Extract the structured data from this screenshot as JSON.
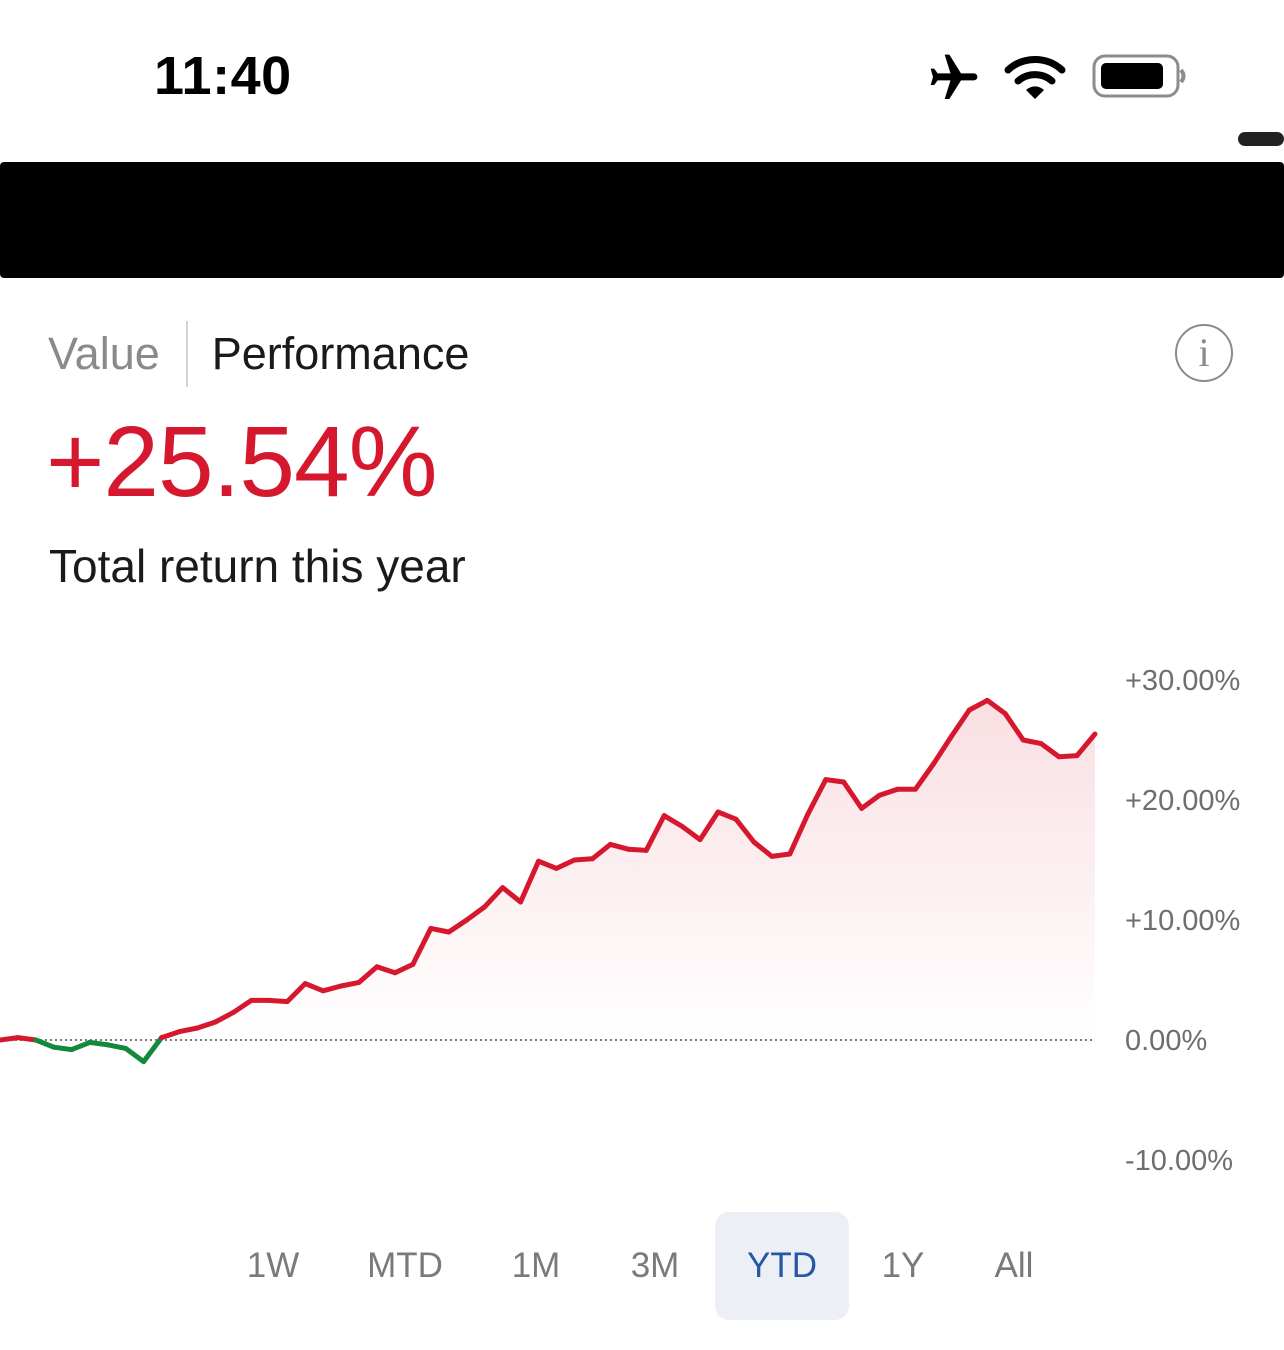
{
  "status_bar": {
    "time": "11:40",
    "icons": [
      "airplane-icon",
      "wifi-icon",
      "battery-icon"
    ]
  },
  "tabs": [
    {
      "label": "Value",
      "active": false
    },
    {
      "label": "Performance",
      "active": true
    }
  ],
  "info_icon": "i",
  "headline": {
    "value": "+25.54%",
    "caption": "Total return this year"
  },
  "colors": {
    "positive": "#d6182f",
    "negative": "#13893a",
    "selected_range_bg": "#eceff4",
    "selected_range_text": "#2557a7"
  },
  "ranges": [
    {
      "label": "1W",
      "selected": false
    },
    {
      "label": "MTD",
      "selected": false
    },
    {
      "label": "1M",
      "selected": false
    },
    {
      "label": "3M",
      "selected": false
    },
    {
      "label": "YTD",
      "selected": true
    },
    {
      "label": "1Y",
      "selected": false
    },
    {
      "label": "All",
      "selected": false
    }
  ],
  "chart_data": {
    "type": "area",
    "title": "",
    "xlabel": "",
    "ylabel": "",
    "y_unit": "%",
    "ylim": [
      -10,
      30
    ],
    "y_ticks": [
      30,
      20,
      10,
      0,
      -10
    ],
    "y_tick_labels": [
      "+30.00%",
      "+20.00%",
      "+10.00%",
      "0.00%",
      "-10.00%"
    ],
    "baseline": 0,
    "baseline_style": "dotted",
    "grid": false,
    "legend": "none",
    "series": [
      {
        "values": [
          0.0,
          0.2,
          0.0,
          -0.6,
          -0.8,
          -0.2,
          -0.4,
          -0.7,
          -1.8,
          0.2,
          0.7,
          1.0,
          1.5,
          2.3,
          3.3,
          3.3,
          3.2,
          4.7,
          4.1,
          4.5,
          4.8,
          6.1,
          5.6,
          6.3,
          9.3,
          9.0,
          10.0,
          11.1,
          12.7,
          11.5,
          14.9,
          14.3,
          15.0,
          15.1,
          16.3,
          15.9,
          15.8,
          18.7,
          17.8,
          16.7,
          19.0,
          18.4,
          16.5,
          15.3,
          15.5,
          18.8,
          21.7,
          21.5,
          19.3,
          20.4,
          20.9,
          20.9,
          23.0,
          25.3,
          27.5,
          28.3,
          27.2,
          25.0,
          24.7,
          23.6,
          23.7,
          25.5
        ]
      }
    ]
  }
}
